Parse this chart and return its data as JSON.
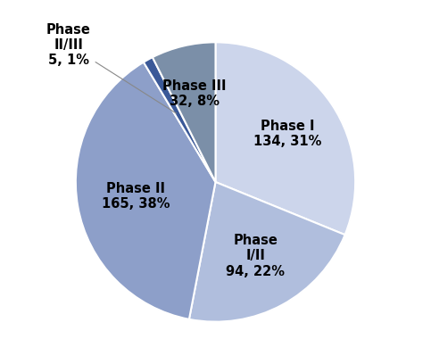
{
  "slices": [
    {
      "label": "Phase I",
      "value": 134,
      "pct": 31,
      "color": "#ccd5eb"
    },
    {
      "label": "Phase I/II",
      "value": 94,
      "pct": 22,
      "color": "#b0bedd"
    },
    {
      "label": "Phase II",
      "value": 165,
      "pct": 38,
      "color": "#8d9fc9"
    },
    {
      "label": "Phase II/III",
      "value": 5,
      "pct": 1,
      "color": "#3b5998"
    },
    {
      "label": "Phase III",
      "value": 32,
      "pct": 8,
      "color": "#7b8fa8"
    }
  ],
  "startangle": 90,
  "background_color": "#ffffff",
  "text_color": "#000000",
  "label_fontsize": 10.5,
  "figsize": [
    4.83,
    4.08
  ],
  "dpi": 100
}
